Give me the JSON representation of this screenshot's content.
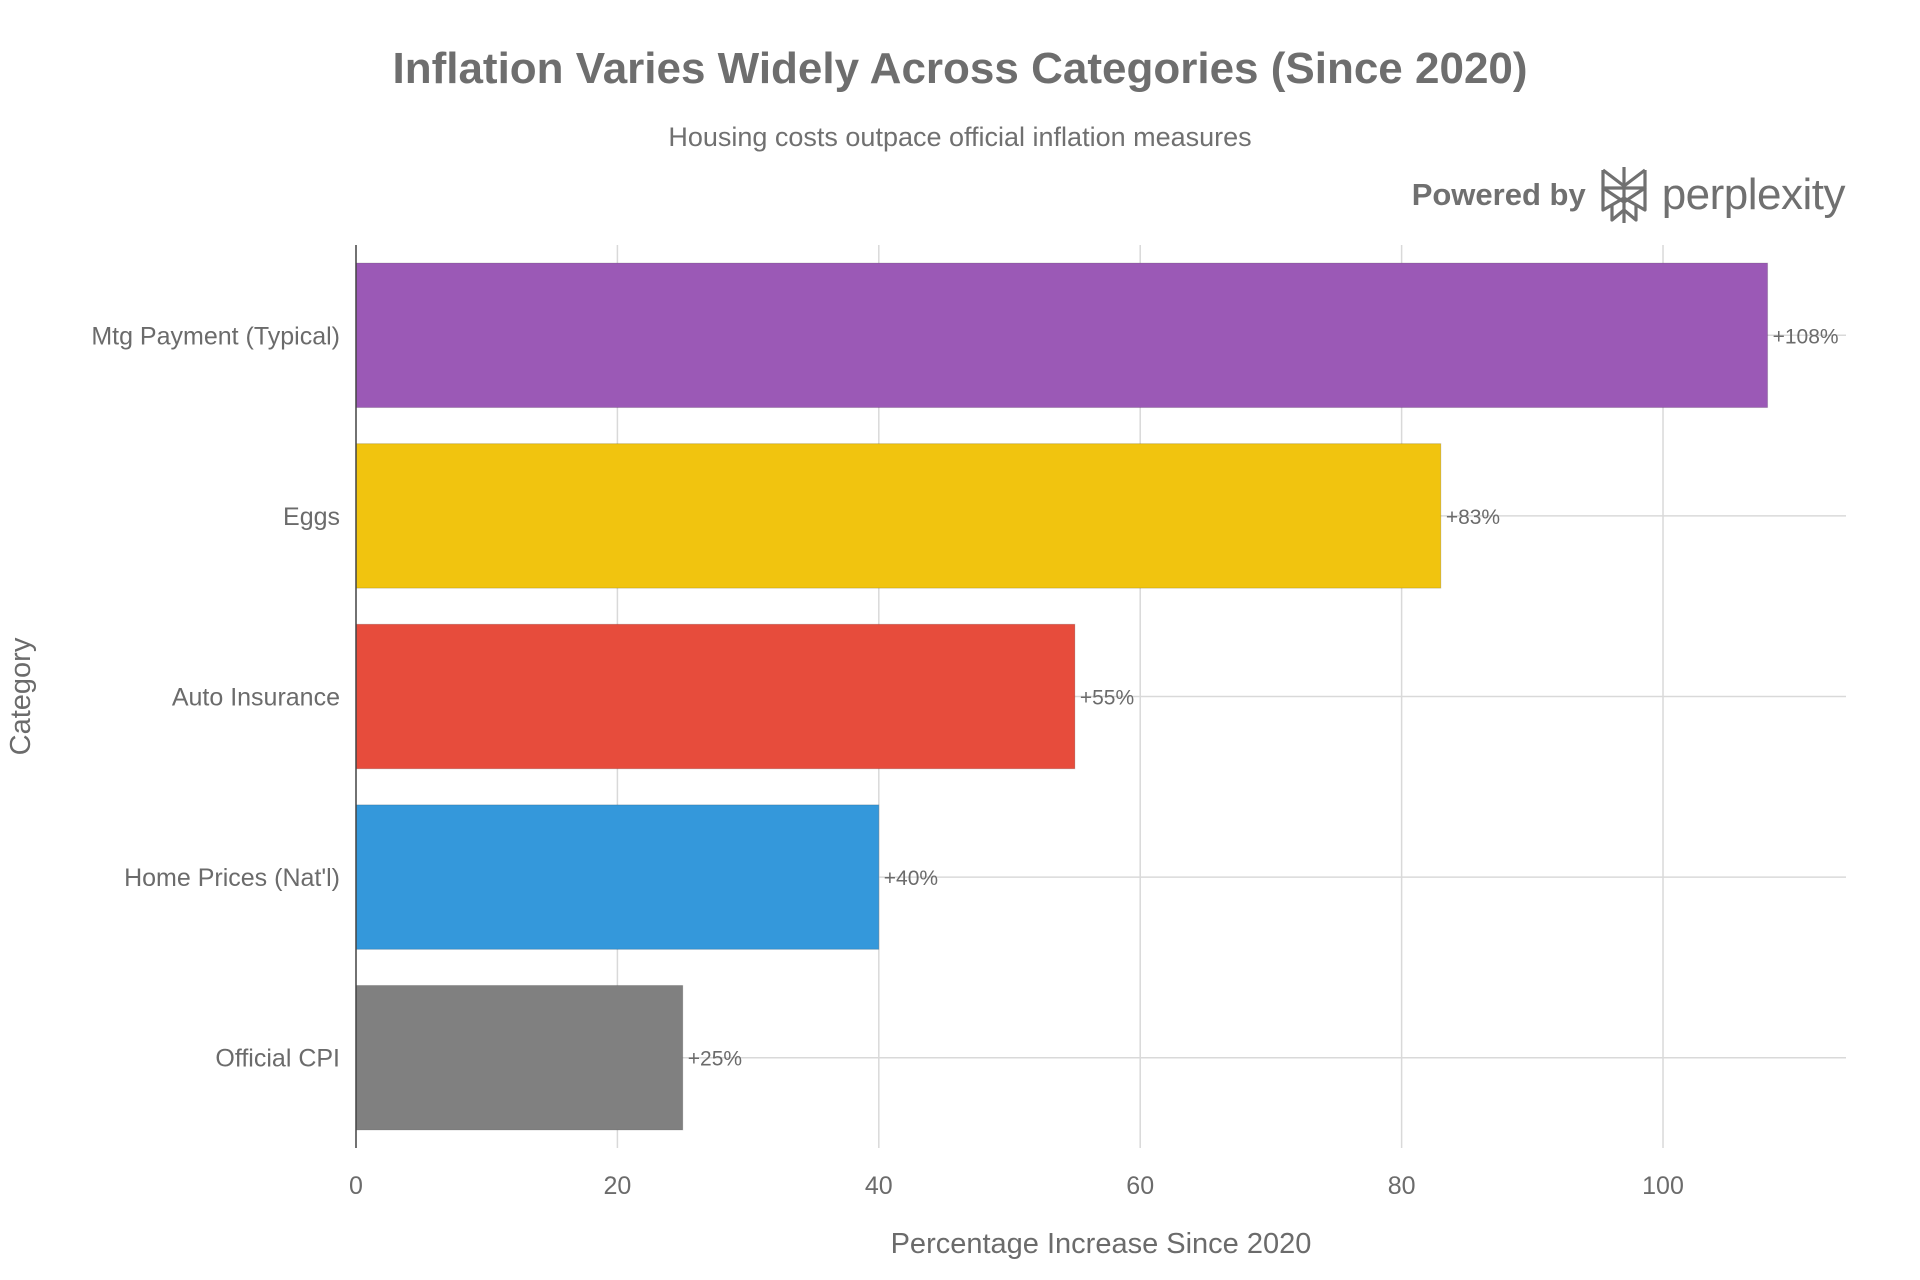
{
  "brand": {
    "prefix": "Powered by",
    "name": "perplexity",
    "logo_icon": "perplexity-logo-icon"
  },
  "chart_data": {
    "type": "bar",
    "orientation": "horizontal",
    "title": "Inflation Varies Widely Across Categories (Since 2020)",
    "subtitle": "Housing costs outpace official inflation measures",
    "xlabel": "Percentage Increase Since 2020",
    "ylabel": "Category",
    "xlim": [
      0,
      114
    ],
    "xticks": [
      0,
      20,
      40,
      60,
      80,
      100
    ],
    "grid": true,
    "categories": [
      "Mtg Payment (Typical)",
      "Eggs",
      "Auto Insurance",
      "Home Prices (Nat'l)",
      "Official CPI"
    ],
    "values": [
      108,
      83,
      55,
      40,
      25
    ],
    "data_labels": [
      "+108%",
      "+83%",
      "+55%",
      "+40%",
      "+25%"
    ],
    "colors": [
      "#9B59B6",
      "#F1C40F",
      "#E74C3C",
      "#3498DB",
      "#808080"
    ]
  }
}
